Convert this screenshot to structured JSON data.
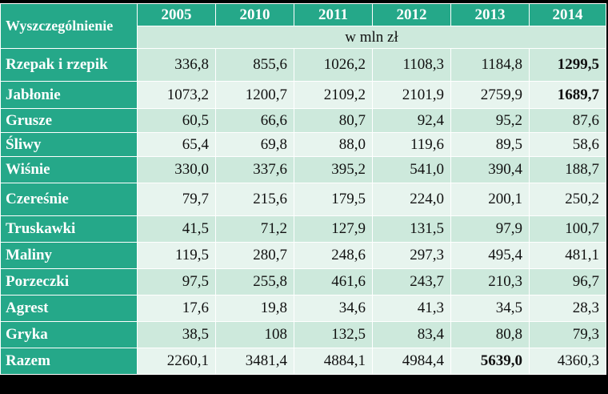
{
  "table": {
    "header_label": "Wyszczególnienie",
    "years": [
      "2005",
      "2010",
      "2011",
      "2012",
      "2013",
      "2014"
    ],
    "unit": "w mln zł",
    "rows": [
      {
        "name": "Rzepak i rzepik",
        "values": [
          "336,8",
          "855,6",
          "1026,2",
          "1108,3",
          "1184,8",
          "1299,5"
        ],
        "bold_index": 5
      },
      {
        "name": "Jabłonie",
        "values": [
          "1073,2",
          "1200,7",
          "2109,2",
          "2101,9",
          "2759,9",
          "1689,7"
        ],
        "bold_index": 5
      },
      {
        "name": "Grusze",
        "values": [
          "60,5",
          "66,6",
          "80,7",
          "92,4",
          "95,2",
          "87,6"
        ],
        "bold_index": -1
      },
      {
        "name": "Śliwy",
        "values": [
          "65,4",
          "69,8",
          "88,0",
          "119,6",
          "89,5",
          "58,6"
        ],
        "bold_index": -1
      },
      {
        "name": "Wiśnie",
        "values": [
          "330,0",
          "337,6",
          "395,2",
          "541,0",
          "390,4",
          "188,7"
        ],
        "bold_index": -1
      },
      {
        "name": "Czereśnie",
        "values": [
          "79,7",
          "215,6",
          "179,5",
          "224,0",
          "200,1",
          "250,2"
        ],
        "bold_index": -1
      },
      {
        "name": "Truskawki",
        "values": [
          "41,5",
          "71,2",
          "127,9",
          "131,5",
          "97,9",
          "100,7"
        ],
        "bold_index": -1
      },
      {
        "name": "Maliny",
        "values": [
          "119,5",
          "280,7",
          "248,6",
          "297,3",
          "495,4",
          "481,1"
        ],
        "bold_index": -1
      },
      {
        "name": "Porzeczki",
        "values": [
          "97,5",
          "255,8",
          "461,6",
          "243,7",
          "210,3",
          "96,7"
        ],
        "bold_index": -1
      },
      {
        "name": "Agrest",
        "values": [
          "17,6",
          "19,8",
          "34,6",
          "41,3",
          "34,5",
          "28,3"
        ],
        "bold_index": -1
      },
      {
        "name": "Gryka",
        "values": [
          "38,5",
          "108",
          "132,5",
          "83,4",
          "80,8",
          "79,3"
        ],
        "bold_index": -1
      },
      {
        "name": "Razem",
        "values": [
          "2260,1",
          "3481,4",
          "4884,1",
          "4984,4",
          "5639,0",
          "4360,3"
        ],
        "bold_index": 4
      }
    ]
  },
  "colors": {
    "header_bg": "#25a889",
    "row_bg_dark": "#cde9dc",
    "row_bg_light": "#e7f4ee",
    "page_bg": "#000000"
  }
}
